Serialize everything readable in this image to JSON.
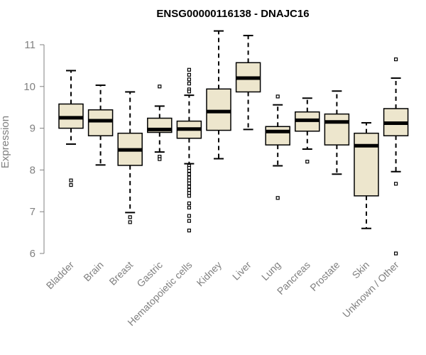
{
  "chart_data": {
    "type": "box",
    "title": "ENSG00000116138 - DNAJC16",
    "xlabel": "",
    "ylabel": "Expression",
    "ylim": [
      6,
      11
    ],
    "yticks": [
      6,
      7,
      8,
      9,
      10,
      11
    ],
    "colors": {
      "box_fill": "#ede6cd",
      "box_stroke": "#000000",
      "median": "#000000",
      "axis": "#808080"
    },
    "categories": [
      "Bladder",
      "Brain",
      "Breast",
      "Gastric",
      "Hematopoietic cells",
      "Kidney",
      "Liver",
      "Lung",
      "Pancreas",
      "Prostate",
      "Skin",
      "Unknown / Other"
    ],
    "boxes": [
      {
        "category": "Bladder",
        "whisker_low": 8.62,
        "q1": 9.0,
        "median": 9.25,
        "q3": 9.58,
        "whisker_high": 10.38,
        "outliers": [
          7.75,
          7.64
        ]
      },
      {
        "category": "Brain",
        "whisker_low": 8.12,
        "q1": 8.82,
        "median": 9.18,
        "q3": 9.44,
        "whisker_high": 10.03,
        "outliers": []
      },
      {
        "category": "Breast",
        "whisker_low": 6.98,
        "q1": 8.11,
        "median": 8.48,
        "q3": 8.88,
        "whisker_high": 9.87,
        "outliers": [
          6.87,
          6.75
        ]
      },
      {
        "category": "Gastric",
        "whisker_low": 8.43,
        "q1": 8.9,
        "median": 8.97,
        "q3": 9.24,
        "whisker_high": 9.53,
        "outliers": [
          10.0,
          8.32,
          8.26
        ]
      },
      {
        "category": "Hematopoietic cells",
        "whisker_low": 8.15,
        "q1": 8.76,
        "median": 8.98,
        "q3": 9.17,
        "whisker_high": 9.79,
        "outliers": [
          10.4,
          10.28,
          10.17,
          10.07,
          9.93,
          9.88,
          8.1,
          8.05,
          7.98,
          7.9,
          7.82,
          7.75,
          7.68,
          7.6,
          7.52,
          7.45,
          7.38,
          7.2,
          7.1,
          6.9,
          6.78,
          6.55
        ]
      },
      {
        "category": "Kidney",
        "whisker_low": 8.27,
        "q1": 8.95,
        "median": 9.4,
        "q3": 9.94,
        "whisker_high": 11.33,
        "outliers": []
      },
      {
        "category": "Liver",
        "whisker_low": 8.97,
        "q1": 9.87,
        "median": 10.2,
        "q3": 10.57,
        "whisker_high": 11.22,
        "outliers": []
      },
      {
        "category": "Lung",
        "whisker_low": 8.1,
        "q1": 8.6,
        "median": 8.92,
        "q3": 9.04,
        "whisker_high": 9.56,
        "outliers": [
          9.76,
          7.33
        ]
      },
      {
        "category": "Pancreas",
        "whisker_low": 8.5,
        "q1": 8.93,
        "median": 9.19,
        "q3": 9.39,
        "whisker_high": 9.72,
        "outliers": [
          8.2
        ]
      },
      {
        "category": "Prostate",
        "whisker_low": 7.9,
        "q1": 8.6,
        "median": 9.15,
        "q3": 9.34,
        "whisker_high": 9.89,
        "outliers": []
      },
      {
        "category": "Skin",
        "whisker_low": 6.6,
        "q1": 7.38,
        "median": 8.58,
        "q3": 8.88,
        "whisker_high": 9.13,
        "outliers": []
      },
      {
        "category": "Unknown / Other",
        "whisker_low": 7.96,
        "q1": 8.82,
        "median": 9.12,
        "q3": 9.47,
        "whisker_high": 10.2,
        "outliers": [
          10.65,
          7.67,
          6.0
        ]
      }
    ]
  }
}
